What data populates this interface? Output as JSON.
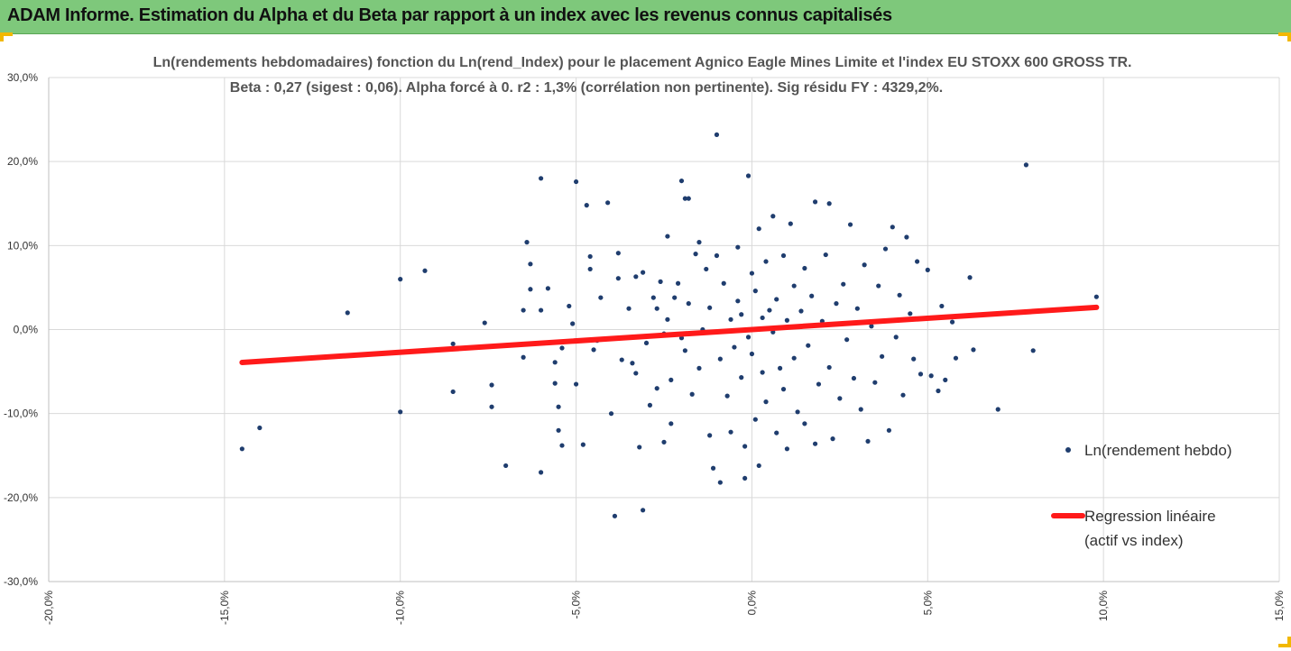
{
  "header": {
    "title": "ADAM Informe. Estimation du Alpha et du Beta par rapport à un index avec les revenus connus capitalisés"
  },
  "colors": {
    "header_bg": "#7ec87b",
    "accent_corner": "#f2b800",
    "points": "#1f3d6e",
    "regression": "#ff1a1a",
    "grid": "#d9d9d9"
  },
  "chart_data": {
    "type": "scatter",
    "title_line1": "Ln(rendements hebdomadaires) fonction du Ln(rend_Index)  pour le placement Agnico Eagle Mines Limite et l'index EU STOXX 600 GROSS TR.",
    "title_line2": "Beta : 0,27 (sigest : 0,06).  Alpha forcé à 0.  r2 : 1,3% (corrélation non pertinente). Sig résidu FY : 4329,2%.",
    "xlim": [
      -0.2,
      0.15
    ],
    "ylim": [
      -0.3,
      0.3
    ],
    "x_ticks": [
      -0.2,
      -0.15,
      -0.1,
      -0.05,
      0.0,
      0.05,
      0.1,
      0.15
    ],
    "x_tick_labels": [
      "-20,0%",
      "-15,0%",
      "-10,0%",
      "-5,0%",
      "0,0%",
      "5,0%",
      "10,0%",
      "15,0%"
    ],
    "y_ticks": [
      0.3,
      0.2,
      0.1,
      0.0,
      -0.1,
      -0.2,
      -0.3
    ],
    "y_tick_labels": [
      "30,0%",
      "20,0%",
      "10,0%",
      "0,0%",
      "-10,0%",
      "-20,0%",
      "-30,0%"
    ],
    "grid": true,
    "legend_position": "right",
    "legend": [
      {
        "label": "Ln(rendement hebdo)",
        "type": "marker"
      },
      {
        "label_line1": "Regression linéaire",
        "label_line2": "(actif vs index)",
        "type": "line"
      }
    ],
    "regression": {
      "slope": 0.27,
      "intercept": 0.0,
      "x_range": [
        -0.145,
        0.098
      ]
    },
    "series": [
      {
        "name": "Ln(rendement hebdo)",
        "points": [
          [
            -0.145,
            -0.142
          ],
          [
            -0.14,
            -0.117
          ],
          [
            -0.115,
            0.02
          ],
          [
            -0.1,
            0.06
          ],
          [
            -0.1,
            -0.098
          ],
          [
            -0.093,
            0.07
          ],
          [
            -0.085,
            -0.017
          ],
          [
            -0.085,
            -0.074
          ],
          [
            -0.076,
            0.008
          ],
          [
            -0.074,
            -0.066
          ],
          [
            -0.074,
            -0.092
          ],
          [
            -0.07,
            -0.162
          ],
          [
            -0.065,
            0.023
          ],
          [
            -0.065,
            -0.033
          ],
          [
            -0.064,
            0.104
          ],
          [
            -0.063,
            0.078
          ],
          [
            -0.063,
            0.048
          ],
          [
            -0.06,
            0.18
          ],
          [
            -0.06,
            0.023
          ],
          [
            -0.06,
            -0.17
          ],
          [
            -0.058,
            0.049
          ],
          [
            -0.056,
            -0.039
          ],
          [
            -0.056,
            -0.064
          ],
          [
            -0.055,
            -0.092
          ],
          [
            -0.055,
            -0.12
          ],
          [
            -0.054,
            -0.138
          ],
          [
            -0.054,
            -0.022
          ],
          [
            -0.052,
            0.028
          ],
          [
            -0.051,
            0.007
          ],
          [
            -0.05,
            0.176
          ],
          [
            -0.05,
            -0.065
          ],
          [
            -0.048,
            -0.137
          ],
          [
            -0.047,
            0.148
          ],
          [
            -0.046,
            0.072
          ],
          [
            -0.046,
            0.087
          ],
          [
            -0.045,
            -0.024
          ],
          [
            -0.044,
            -0.013
          ],
          [
            -0.043,
            0.038
          ],
          [
            -0.041,
            0.151
          ],
          [
            -0.04,
            -0.1
          ],
          [
            -0.039,
            -0.222
          ],
          [
            -0.038,
            0.091
          ],
          [
            -0.038,
            0.061
          ],
          [
            -0.037,
            -0.036
          ],
          [
            -0.036,
            -0.01
          ],
          [
            -0.035,
            0.025
          ],
          [
            -0.034,
            -0.04
          ],
          [
            -0.033,
            -0.052
          ],
          [
            -0.033,
            0.063
          ],
          [
            -0.032,
            -0.14
          ],
          [
            -0.031,
            -0.215
          ],
          [
            -0.031,
            0.068
          ],
          [
            -0.03,
            -0.016
          ],
          [
            -0.029,
            -0.09
          ],
          [
            -0.028,
            0.038
          ],
          [
            -0.027,
            0.025
          ],
          [
            -0.027,
            -0.07
          ],
          [
            -0.026,
            0.057
          ],
          [
            -0.025,
            -0.134
          ],
          [
            -0.025,
            -0.005
          ],
          [
            -0.024,
            0.012
          ],
          [
            -0.024,
            0.111
          ],
          [
            -0.023,
            -0.112
          ],
          [
            -0.023,
            -0.06
          ],
          [
            -0.022,
            0.038
          ],
          [
            -0.021,
            0.055
          ],
          [
            -0.02,
            -0.01
          ],
          [
            -0.02,
            0.177
          ],
          [
            -0.019,
            -0.025
          ],
          [
            -0.019,
            0.156
          ],
          [
            -0.018,
            0.031
          ],
          [
            -0.018,
            0.156
          ],
          [
            -0.017,
            -0.077
          ],
          [
            -0.016,
            0.09
          ],
          [
            -0.015,
            0.104
          ],
          [
            -0.015,
            -0.046
          ],
          [
            -0.014,
            0.0
          ],
          [
            -0.013,
            0.072
          ],
          [
            -0.012,
            -0.126
          ],
          [
            -0.012,
            0.026
          ],
          [
            -0.011,
            -0.165
          ],
          [
            -0.01,
            0.088
          ],
          [
            -0.01,
            0.232
          ],
          [
            -0.009,
            -0.182
          ],
          [
            -0.009,
            -0.035
          ],
          [
            -0.008,
            0.055
          ],
          [
            -0.007,
            -0.079
          ],
          [
            -0.006,
            -0.122
          ],
          [
            -0.006,
            0.012
          ],
          [
            -0.005,
            -0.021
          ],
          [
            -0.004,
            0.098
          ],
          [
            -0.004,
            0.034
          ],
          [
            -0.003,
            -0.057
          ],
          [
            -0.003,
            0.018
          ],
          [
            -0.002,
            -0.139
          ],
          [
            -0.002,
            -0.177
          ],
          [
            -0.001,
            0.183
          ],
          [
            -0.001,
            -0.009
          ],
          [
            0.0,
            -0.029
          ],
          [
            0.0,
            0.067
          ],
          [
            0.001,
            -0.107
          ],
          [
            0.001,
            0.046
          ],
          [
            0.002,
            -0.162
          ],
          [
            0.002,
            0.12
          ],
          [
            0.003,
            0.014
          ],
          [
            0.003,
            -0.051
          ],
          [
            0.004,
            0.081
          ],
          [
            0.004,
            -0.086
          ],
          [
            0.005,
            0.023
          ],
          [
            0.006,
            -0.003
          ],
          [
            0.006,
            0.135
          ],
          [
            0.007,
            -0.123
          ],
          [
            0.007,
            0.036
          ],
          [
            0.008,
            -0.046
          ],
          [
            0.009,
            0.088
          ],
          [
            0.009,
            -0.071
          ],
          [
            0.01,
            0.011
          ],
          [
            0.01,
            -0.142
          ],
          [
            0.011,
            0.126
          ],
          [
            0.012,
            -0.034
          ],
          [
            0.012,
            0.052
          ],
          [
            0.013,
            -0.098
          ],
          [
            0.014,
            0.022
          ],
          [
            0.015,
            0.073
          ],
          [
            0.015,
            -0.112
          ],
          [
            0.016,
            -0.019
          ],
          [
            0.017,
            0.04
          ],
          [
            0.018,
            -0.136
          ],
          [
            0.018,
            0.152
          ],
          [
            0.019,
            -0.065
          ],
          [
            0.02,
            0.01
          ],
          [
            0.021,
            0.089
          ],
          [
            0.022,
            -0.045
          ],
          [
            0.022,
            0.15
          ],
          [
            0.023,
            -0.13
          ],
          [
            0.024,
            0.031
          ],
          [
            0.025,
            -0.082
          ],
          [
            0.026,
            0.054
          ],
          [
            0.027,
            -0.012
          ],
          [
            0.028,
            0.125
          ],
          [
            0.029,
            -0.058
          ],
          [
            0.03,
            0.025
          ],
          [
            0.031,
            -0.095
          ],
          [
            0.032,
            0.077
          ],
          [
            0.033,
            -0.133
          ],
          [
            0.034,
            0.004
          ],
          [
            0.035,
            -0.063
          ],
          [
            0.036,
            0.052
          ],
          [
            0.037,
            -0.032
          ],
          [
            0.038,
            0.096
          ],
          [
            0.039,
            -0.12
          ],
          [
            0.04,
            0.122
          ],
          [
            0.041,
            -0.009
          ],
          [
            0.042,
            0.041
          ],
          [
            0.043,
            -0.078
          ],
          [
            0.044,
            0.11
          ],
          [
            0.045,
            0.019
          ],
          [
            0.046,
            -0.035
          ],
          [
            0.047,
            0.081
          ],
          [
            0.048,
            -0.053
          ],
          [
            0.049,
            0.013
          ],
          [
            0.05,
            0.071
          ],
          [
            0.051,
            -0.055
          ],
          [
            0.053,
            -0.073
          ],
          [
            0.054,
            0.028
          ],
          [
            0.055,
            -0.06
          ],
          [
            0.057,
            0.009
          ],
          [
            0.058,
            -0.034
          ],
          [
            0.062,
            0.062
          ],
          [
            0.063,
            -0.024
          ],
          [
            0.07,
            -0.095
          ],
          [
            0.078,
            0.196
          ],
          [
            0.08,
            -0.025
          ],
          [
            0.098,
            0.039
          ]
        ]
      }
    ]
  }
}
